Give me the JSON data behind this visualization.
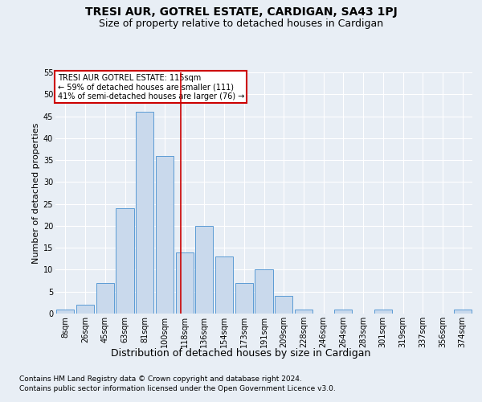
{
  "title": "TRESI AUR, GOTREL ESTATE, CARDIGAN, SA43 1PJ",
  "subtitle": "Size of property relative to detached houses in Cardigan",
  "xlabel": "Distribution of detached houses by size in Cardigan",
  "ylabel": "Number of detached properties",
  "footer_line1": "Contains HM Land Registry data © Crown copyright and database right 2024.",
  "footer_line2": "Contains public sector information licensed under the Open Government Licence v3.0.",
  "bar_labels": [
    "8sqm",
    "26sqm",
    "45sqm",
    "63sqm",
    "81sqm",
    "100sqm",
    "118sqm",
    "136sqm",
    "154sqm",
    "173sqm",
    "191sqm",
    "209sqm",
    "228sqm",
    "246sqm",
    "264sqm",
    "283sqm",
    "301sqm",
    "319sqm",
    "337sqm",
    "356sqm",
    "374sqm"
  ],
  "bar_values": [
    1,
    2,
    7,
    24,
    46,
    36,
    14,
    20,
    13,
    7,
    10,
    4,
    1,
    0,
    1,
    0,
    1,
    0,
    0,
    0,
    1
  ],
  "bar_color": "#c9d9ec",
  "bar_edge_color": "#5b9bd5",
  "reference_line_x": 5.5,
  "reference_line_label": "TRESI AUR GOTREL ESTATE: 115sqm",
  "annotation_line1": "← 59% of detached houses are smaller (111)",
  "annotation_line2": "41% of semi-detached houses are larger (76) →",
  "ylim": [
    0,
    55
  ],
  "yticks": [
    0,
    5,
    10,
    15,
    20,
    25,
    30,
    35,
    40,
    45,
    50,
    55
  ],
  "bg_color": "#e8eef5",
  "plot_bg_color": "#e8eef5",
  "grid_color": "#ffffff",
  "annotation_box_color": "#ffffff",
  "annotation_box_edge": "#cc0000",
  "title_fontsize": 10,
  "subtitle_fontsize": 9,
  "axis_label_fontsize": 9,
  "tick_fontsize": 7,
  "footer_fontsize": 6.5,
  "ylabel_fontsize": 8
}
